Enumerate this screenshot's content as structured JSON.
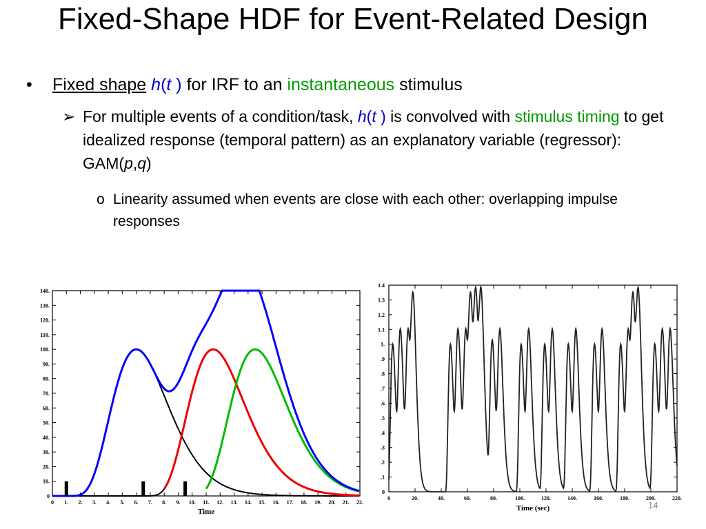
{
  "slide": {
    "title": "Fixed-Shape HDF for Event-Related Design",
    "page_number": "14"
  },
  "bullets": {
    "l1": {
      "marker": "•",
      "underlined": "Fixed shape",
      "h": "h",
      "paren_open": "(",
      "t": "t",
      "paren_close": " )",
      "text1": " for IRF to an ",
      "green": "instantaneous",
      "text2": " stimulus"
    },
    "l2": {
      "marker": "➢",
      "text1": "For multiple events of a condition/task, ",
      "h": "h",
      "paren_open": "(",
      "t": "t",
      "paren_close": " )",
      "text2": " is convolved with ",
      "green": "stimulus timing",
      "text3": " to get idealized response (temporal pattern) as an explanatory variable (regressor): GAM(",
      "p": "p",
      "comma": ",",
      "q": "q",
      "close": ")"
    },
    "l3": {
      "marker": "o",
      "text": "Linearity assumed when events are close with each other: overlapping impulse responses"
    }
  },
  "colors": {
    "blue": "#0000ff",
    "red": "#ee0000",
    "green": "#00bb00",
    "black": "#000000",
    "text_blue": "#0000cc",
    "text_green": "#009900"
  },
  "chart_data": [
    {
      "type": "line",
      "xlabel": "Time",
      "ylabel": "",
      "xlim": [
        0,
        22
      ],
      "ylim": [
        0,
        140
      ],
      "x_ticks": [
        "0",
        "1.",
        "2.",
        "3.",
        "4.",
        "5.",
        "6.",
        "7.",
        "8.",
        "9.",
        "10.",
        "11.",
        "12.",
        "13.",
        "14.",
        "15.",
        "16.",
        "17.",
        "18.",
        "19.",
        "20.",
        "21.",
        "22."
      ],
      "y_ticks": [
        "0",
        "10.",
        "20.",
        "30.",
        "40.",
        "50.",
        "60.",
        "70.",
        "80.",
        "90.",
        "100.",
        "110.",
        "120.",
        "130.",
        "140."
      ],
      "stimulus_times": [
        1,
        6.5,
        9.5
      ],
      "response_peak": 100,
      "series": [
        {
          "color": "#000000",
          "note_values": {
            "onset": 1,
            "peak_time": 6
          }
        },
        {
          "color": "#000000",
          "note_values": {
            "onset": 6.5,
            "peak_time": 11.5
          }
        },
        {
          "color": "#ee0000",
          "note_values": {
            "onset": 6.5,
            "peak_time": 11.5
          }
        },
        {
          "color": "#00bb00",
          "note_values": {
            "onset": 9.5,
            "peak_time": 14.5
          }
        },
        {
          "color": "#0000ff",
          "note_values": {
            "sum_of": "all responses"
          }
        }
      ]
    },
    {
      "type": "line",
      "xlabel": "Time (sec)",
      "ylabel": "",
      "xlim": [
        0,
        220
      ],
      "ylim": [
        0,
        1.4
      ],
      "x_ticks": [
        "0",
        "20.",
        "40.",
        "60.",
        "80.",
        "100.",
        "120.",
        "140.",
        "160.",
        "180.",
        "200.",
        "220."
      ],
      "y_ticks": [
        "0",
        ".1",
        ".2",
        ".3",
        ".4",
        ".5",
        ".6",
        ".7",
        ".8",
        ".9",
        "1.",
        "1.1",
        "1.2",
        "1.3",
        "1.4"
      ],
      "event_times": [
        2,
        8,
        14,
        18,
        46,
        52,
        58,
        62,
        66,
        70,
        78,
        84,
        100,
        106,
        118,
        124,
        136,
        142,
        156,
        162,
        176,
        182,
        186,
        190,
        202,
        208,
        214
      ]
    }
  ]
}
